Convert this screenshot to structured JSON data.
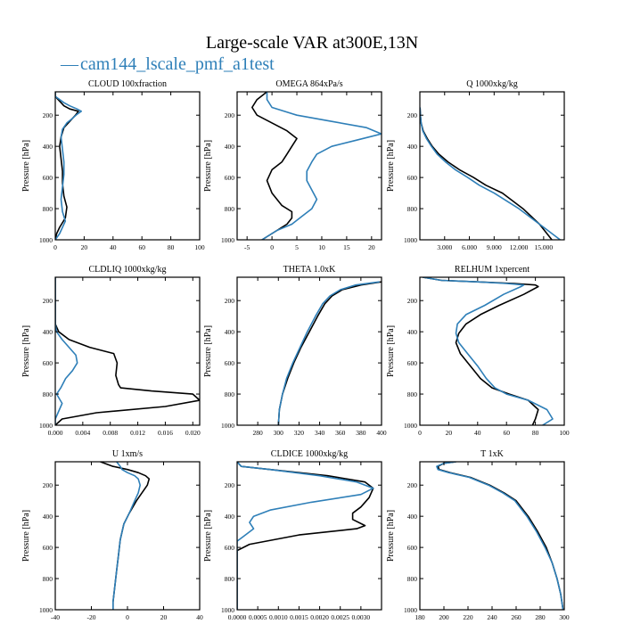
{
  "figure": {
    "title": "Large-scale VAR at300E,13N",
    "legend_prefix": "—",
    "legend_label": "cam144_lscale_pmf_a1test"
  },
  "colors": {
    "series_1": "#000000",
    "series_2": "#2e7fb8",
    "axes": "#000000"
  },
  "chart_data": [
    {
      "type": "line",
      "title": "CLOUD 100xfraction",
      "ylabel": "Pressure [hPa]",
      "xlim": [
        0,
        100
      ],
      "ylim": [
        1000,
        50
      ],
      "xticks": [
        0,
        20,
        40,
        60,
        80,
        100
      ],
      "xtick_labels": [
        "0",
        "20",
        "40",
        "60",
        "80",
        "100"
      ],
      "yticks": [
        200,
        400,
        600,
        800,
        1000
      ],
      "ytick_labels": [
        "200",
        "400",
        "600",
        "800",
        "1000"
      ],
      "series": [
        {
          "name": "black",
          "x": [
            0,
            0,
            2,
            4,
            6,
            10,
            16,
            14,
            10,
            6,
            4,
            3,
            4,
            5,
            5,
            6,
            8,
            7,
            3,
            1,
            0
          ],
          "y": [
            50,
            80,
            100,
            120,
            140,
            160,
            175,
            200,
            240,
            280,
            340,
            400,
            480,
            560,
            640,
            720,
            790,
            860,
            920,
            960,
            1000
          ]
        },
        {
          "name": "blue",
          "x": [
            0,
            0,
            3,
            6,
            10,
            15,
            18,
            15,
            12,
            8,
            5,
            4,
            5,
            6,
            6,
            5,
            4,
            5,
            7,
            5,
            3,
            0
          ],
          "y": [
            50,
            80,
            100,
            120,
            140,
            160,
            175,
            195,
            220,
            250,
            290,
            340,
            420,
            500,
            580,
            660,
            740,
            820,
            880,
            920,
            960,
            1000
          ]
        }
      ]
    },
    {
      "type": "line",
      "title": "OMEGA 864xPa/s",
      "ylabel": "Pressure [hPa]",
      "xlim": [
        -7,
        22
      ],
      "ylim": [
        1000,
        50
      ],
      "xticks": [
        -5,
        0,
        5,
        10,
        15,
        20
      ],
      "xtick_labels": [
        "-5",
        "0",
        "5",
        "10",
        "15",
        "20"
      ],
      "yticks": [
        200,
        400,
        600,
        800,
        1000
      ],
      "ytick_labels": [
        "200",
        "400",
        "600",
        "800",
        "1000"
      ],
      "series": [
        {
          "name": "black",
          "x": [
            -1,
            -3,
            -4,
            -3,
            0,
            3,
            5,
            4,
            3,
            2,
            0,
            -1,
            0,
            2,
            4,
            4,
            3,
            1,
            -1,
            -2
          ],
          "y": [
            50,
            100,
            150,
            200,
            250,
            300,
            350,
            400,
            450,
            500,
            550,
            620,
            700,
            780,
            820,
            860,
            900,
            940,
            980,
            1000
          ]
        },
        {
          "name": "blue",
          "x": [
            -1,
            -1,
            0,
            5,
            12,
            19,
            22,
            17,
            12,
            9,
            8,
            7,
            7,
            8,
            9,
            8,
            6,
            4,
            1,
            -1,
            -2
          ],
          "y": [
            50,
            100,
            150,
            200,
            240,
            280,
            320,
            360,
            400,
            450,
            500,
            560,
            620,
            680,
            740,
            800,
            850,
            900,
            940,
            980,
            1000
          ]
        }
      ]
    },
    {
      "type": "line",
      "title": "Q 1000xkg/kg",
      "ylabel": "Pressure [hPa]",
      "xlim": [
        0,
        17500
      ],
      "ylim": [
        1000,
        50
      ],
      "xticks": [
        3000,
        6000,
        9000,
        12000,
        15000
      ],
      "xtick_labels": [
        "3.000",
        "6.000",
        "9.000",
        "12.000",
        "15.000"
      ],
      "yticks": [
        200,
        400,
        600,
        800,
        1000
      ],
      "ytick_labels": [
        "200",
        "400",
        "600",
        "800",
        "1000"
      ],
      "series": [
        {
          "name": "black",
          "x": [
            20,
            60,
            150,
            400,
            900,
            1500,
            2300,
            3400,
            4800,
            6500,
            8000,
            10000,
            12500,
            14500,
            16000
          ],
          "y": [
            150,
            200,
            250,
            300,
            350,
            400,
            450,
            500,
            550,
            600,
            650,
            700,
            800,
            900,
            1000
          ]
        },
        {
          "name": "blue",
          "x": [
            20,
            60,
            150,
            350,
            800,
            1400,
            2100,
            3100,
            4300,
            5800,
            7200,
            9000,
            12000,
            15000,
            17000
          ],
          "y": [
            150,
            200,
            250,
            300,
            350,
            400,
            450,
            500,
            550,
            600,
            650,
            700,
            800,
            920,
            1000
          ]
        }
      ]
    },
    {
      "type": "line",
      "title": "CLDLIQ 1000xkg/kg",
      "ylabel": "Pressure [hPa]",
      "xlim": [
        0,
        0.021
      ],
      "ylim": [
        1000,
        50
      ],
      "xticks": [
        0,
        0.004,
        0.008,
        0.012,
        0.016,
        0.02
      ],
      "xtick_labels": [
        "0.000",
        "0.004",
        "0.008",
        "0.012",
        "0.016",
        "0.020"
      ],
      "yticks": [
        200,
        400,
        600,
        800,
        1000
      ],
      "ytick_labels": [
        "200",
        "400",
        "600",
        "800",
        "1000"
      ],
      "series": [
        {
          "name": "black",
          "x": [
            0,
            0,
            0.0005,
            0.002,
            0.005,
            0.0085,
            0.009,
            0.0088,
            0.0092,
            0.0095,
            0.014,
            0.02,
            0.021,
            0.016,
            0.006,
            0.001,
            0
          ],
          "y": [
            50,
            350,
            400,
            450,
            500,
            540,
            600,
            680,
            740,
            760,
            780,
            800,
            840,
            880,
            920,
            960,
            1000
          ]
        },
        {
          "name": "blue",
          "x": [
            0,
            0,
            0.0002,
            0.001,
            0.002,
            0.003,
            0.0032,
            0.0025,
            0.0015,
            0.0008,
            0.0002,
            0.001,
            0.0004,
            0,
            0
          ],
          "y": [
            50,
            350,
            400,
            450,
            500,
            550,
            600,
            650,
            700,
            760,
            800,
            860,
            920,
            960,
            1000
          ]
        }
      ]
    },
    {
      "type": "line",
      "title": "THETA 1.0xK",
      "ylabel": "Pressure [hPa]",
      "xlim": [
        260,
        400
      ],
      "ylim": [
        1000,
        50
      ],
      "xticks": [
        280,
        300,
        320,
        340,
        360,
        380,
        400
      ],
      "xtick_labels": [
        "280",
        "300",
        "320",
        "340",
        "360",
        "380",
        "400"
      ],
      "yticks": [
        200,
        400,
        600,
        800,
        1000
      ],
      "ytick_labels": [
        "200",
        "400",
        "600",
        "800",
        "1000"
      ],
      "series": [
        {
          "name": "black",
          "x": [
            400,
            380,
            362,
            352,
            345,
            338,
            330,
            322,
            315,
            309,
            304,
            301,
            300
          ],
          "y": [
            80,
            100,
            130,
            170,
            220,
            300,
            400,
            500,
            600,
            700,
            800,
            900,
            1000
          ]
        },
        {
          "name": "blue",
          "x": [
            398,
            375,
            360,
            350,
            343,
            336,
            328,
            321,
            314,
            308,
            304,
            301,
            300
          ],
          "y": [
            80,
            100,
            130,
            170,
            220,
            300,
            400,
            500,
            600,
            700,
            800,
            900,
            1000
          ]
        }
      ]
    },
    {
      "type": "line",
      "title": "RELHUM 1xpercent",
      "ylabel": "Pressure [hPa]",
      "xlim": [
        0,
        100
      ],
      "ylim": [
        1000,
        50
      ],
      "xticks": [
        0,
        20,
        40,
        60,
        80,
        100
      ],
      "xtick_labels": [
        "0",
        "20",
        "40",
        "60",
        "80",
        "100"
      ],
      "yticks": [
        200,
        400,
        600,
        800,
        1000
      ],
      "ytick_labels": [
        "200",
        "400",
        "600",
        "800",
        "1000"
      ],
      "series": [
        {
          "name": "black",
          "x": [
            2,
            15,
            40,
            65,
            80,
            82,
            72,
            55,
            42,
            32,
            27,
            25,
            28,
            35,
            42,
            50,
            62,
            75,
            82,
            80,
            78
          ],
          "y": [
            50,
            70,
            80,
            90,
            100,
            110,
            160,
            230,
            290,
            350,
            410,
            470,
            540,
            620,
            700,
            760,
            800,
            840,
            900,
            960,
            1000
          ]
        },
        {
          "name": "blue",
          "x": [
            2,
            15,
            40,
            60,
            72,
            70,
            58,
            45,
            32,
            26,
            25,
            27,
            33,
            40,
            46,
            52,
            60,
            75,
            88,
            92,
            85
          ],
          "y": [
            50,
            70,
            80,
            90,
            100,
            110,
            160,
            230,
            290,
            350,
            410,
            470,
            540,
            620,
            700,
            760,
            800,
            840,
            900,
            960,
            1000
          ]
        }
      ]
    },
    {
      "type": "line",
      "title": "U 1xm/s",
      "ylabel": "Pressure [hPa]",
      "xlim": [
        -40,
        40
      ],
      "ylim": [
        1000,
        50
      ],
      "xticks": [
        -40,
        -20,
        0,
        20,
        40
      ],
      "xtick_labels": [
        "-40",
        "-20",
        "0",
        "20",
        "40"
      ],
      "yticks": [
        200,
        400,
        600,
        800,
        1000
      ],
      "ytick_labels": [
        "200",
        "400",
        "600",
        "800",
        "1000"
      ],
      "series": [
        {
          "name": "black",
          "x": [
            -15,
            -8,
            0,
            6,
            10,
            12,
            11,
            8,
            5,
            1,
            -2,
            -4,
            -5,
            -6,
            -7,
            -8,
            -8
          ],
          "y": [
            50,
            80,
            100,
            120,
            140,
            160,
            200,
            250,
            300,
            380,
            450,
            550,
            650,
            750,
            850,
            950,
            1000
          ]
        },
        {
          "name": "blue",
          "x": [
            -6,
            -4,
            -3,
            0,
            4,
            6,
            7,
            6,
            4,
            1,
            -2,
            -4,
            -5,
            -6,
            -7,
            -8,
            -8
          ],
          "y": [
            50,
            80,
            100,
            120,
            140,
            160,
            200,
            250,
            300,
            380,
            450,
            550,
            650,
            750,
            850,
            950,
            1000
          ]
        }
      ]
    },
    {
      "type": "line",
      "title": "CLDICE 1000xkg/kg",
      "ylabel": "Pressure [hPa]",
      "xlim": [
        0,
        0.0035
      ],
      "ylim": [
        1000,
        50
      ],
      "xticks": [
        0,
        0.0005,
        0.001,
        0.0015,
        0.002,
        0.0025,
        0.003
      ],
      "xtick_labels": [
        "0.0000",
        "0.0005",
        "0.0010",
        "0.0015",
        "0.0020",
        "0.0025",
        "0.0030"
      ],
      "yticks": [
        200,
        400,
        600,
        800,
        1000
      ],
      "ytick_labels": [
        "200",
        "400",
        "600",
        "800",
        "1000"
      ],
      "series": [
        {
          "name": "black",
          "x": [
            0,
            0.0001,
            0.0008,
            0.0022,
            0.0031,
            0.0033,
            0.0032,
            0.003,
            0.0028,
            0.0028,
            0.0031,
            0.0029,
            0.0015,
            0.0003,
            0,
            0
          ],
          "y": [
            50,
            80,
            100,
            140,
            180,
            220,
            280,
            340,
            380,
            420,
            460,
            480,
            520,
            580,
            620,
            1000
          ]
        },
        {
          "name": "blue",
          "x": [
            0,
            0.0001,
            0.0008,
            0.002,
            0.0029,
            0.0033,
            0.003,
            0.0018,
            0.0008,
            0.0004,
            0.0003,
            0.0004,
            0.0002,
            0,
            0
          ],
          "y": [
            50,
            80,
            100,
            140,
            180,
            220,
            260,
            310,
            360,
            400,
            440,
            480,
            520,
            560,
            1000
          ]
        }
      ]
    },
    {
      "type": "line",
      "title": "T 1xK",
      "ylabel": "Pressure [hPa]",
      "xlim": [
        180,
        300
      ],
      "ylim": [
        1000,
        50
      ],
      "xticks": [
        180,
        200,
        220,
        240,
        260,
        280,
        300
      ],
      "xtick_labels": [
        "180",
        "200",
        "220",
        "240",
        "260",
        "280",
        "300"
      ],
      "yticks": [
        200,
        400,
        600,
        800,
        1000
      ],
      "ytick_labels": [
        "200",
        "400",
        "600",
        "800",
        "1000"
      ],
      "series": [
        {
          "name": "black",
          "x": [
            210,
            200,
            195,
            196,
            205,
            222,
            238,
            250,
            260,
            270,
            278,
            285,
            290,
            294,
            297,
            299
          ],
          "y": [
            50,
            60,
            80,
            100,
            120,
            150,
            200,
            250,
            300,
            400,
            500,
            600,
            700,
            800,
            900,
            1000
          ]
        },
        {
          "name": "blue",
          "x": [
            210,
            200,
            194,
            195,
            204,
            221,
            237,
            249,
            259,
            269,
            277,
            284,
            290,
            294,
            297,
            299
          ],
          "y": [
            50,
            60,
            80,
            100,
            120,
            150,
            200,
            250,
            300,
            400,
            500,
            600,
            700,
            800,
            900,
            1000
          ]
        }
      ]
    }
  ]
}
